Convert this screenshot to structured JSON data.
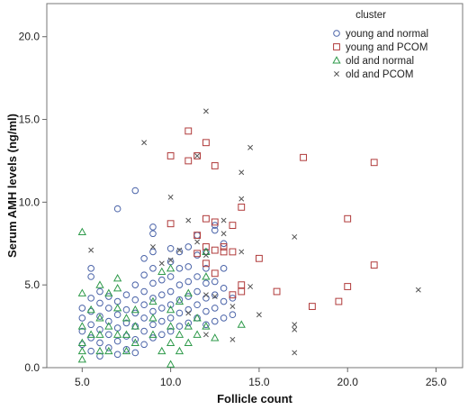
{
  "chart_data": {
    "type": "scatter",
    "xlabel": "Follicle count",
    "ylabel": "Serum AMH levels (ng/ml)",
    "xlim": [
      3.0,
      26.5
    ],
    "ylim": [
      0.0,
      22.0
    ],
    "x_ticks": [
      "5.0",
      "10.0",
      "15.0",
      "20.0",
      "25.0"
    ],
    "y_ticks": [
      "0.0",
      "5.0",
      "10.0",
      "15.0",
      "20.0"
    ],
    "grid": false,
    "legend": {
      "title": "cluster",
      "position": "top-right"
    },
    "series": [
      {
        "name": "young and normal",
        "marker": "circle",
        "color": "#4a63a8",
        "points": [
          [
            5,
            1.4
          ],
          [
            5,
            2.2
          ],
          [
            5,
            3.0
          ],
          [
            5,
            3.6
          ],
          [
            5.5,
            1.0
          ],
          [
            5.5,
            1.8
          ],
          [
            5.5,
            2.6
          ],
          [
            5.5,
            3.4
          ],
          [
            5.5,
            4.2
          ],
          [
            5.5,
            5.5
          ],
          [
            5.5,
            6.0
          ],
          [
            6,
            0.7
          ],
          [
            6,
            1.5
          ],
          [
            6,
            2.3
          ],
          [
            6,
            3.1
          ],
          [
            6,
            3.9
          ],
          [
            6,
            4.6
          ],
          [
            6.5,
            1.2
          ],
          [
            6.5,
            2.0
          ],
          [
            6.5,
            2.8
          ],
          [
            6.5,
            3.6
          ],
          [
            6.5,
            4.3
          ],
          [
            7,
            0.8
          ],
          [
            7,
            1.6
          ],
          [
            7,
            2.4
          ],
          [
            7,
            3.2
          ],
          [
            7,
            4.0
          ],
          [
            7,
            9.6
          ],
          [
            7.5,
            1.1
          ],
          [
            7.5,
            1.9
          ],
          [
            7.5,
            2.7
          ],
          [
            7.5,
            3.5
          ],
          [
            7.5,
            4.4
          ],
          [
            8,
            0.9
          ],
          [
            8,
            1.7
          ],
          [
            8,
            2.5
          ],
          [
            8,
            3.3
          ],
          [
            8,
            4.1
          ],
          [
            8,
            5.0
          ],
          [
            8,
            10.7
          ],
          [
            8.5,
            1.4
          ],
          [
            8.5,
            2.2
          ],
          [
            8.5,
            3.0
          ],
          [
            8.5,
            3.8
          ],
          [
            8.5,
            4.6
          ],
          [
            8.5,
            5.6
          ],
          [
            8.5,
            6.6
          ],
          [
            9,
            1.8
          ],
          [
            9,
            2.6
          ],
          [
            9,
            3.4
          ],
          [
            9,
            4.2
          ],
          [
            9,
            5.1
          ],
          [
            9,
            6.0
          ],
          [
            9,
            7.0
          ],
          [
            9,
            8.1
          ],
          [
            9,
            8.5
          ],
          [
            9.5,
            2.0
          ],
          [
            9.5,
            2.8
          ],
          [
            9.5,
            3.6
          ],
          [
            9.5,
            4.4
          ],
          [
            9.5,
            5.3
          ],
          [
            10,
            2.2
          ],
          [
            10,
            3.0
          ],
          [
            10,
            3.8
          ],
          [
            10,
            4.6
          ],
          [
            10,
            5.5
          ],
          [
            10,
            6.4
          ],
          [
            10,
            7.2
          ],
          [
            10.5,
            2.5
          ],
          [
            10.5,
            3.3
          ],
          [
            10.5,
            4.1
          ],
          [
            10.5,
            5.0
          ],
          [
            10.5,
            6.0
          ],
          [
            10.5,
            7.0
          ],
          [
            11,
            2.7
          ],
          [
            11,
            3.5
          ],
          [
            11,
            4.3
          ],
          [
            11,
            5.2
          ],
          [
            11,
            6.1
          ],
          [
            11,
            7.3
          ],
          [
            11.5,
            3.0
          ],
          [
            11.5,
            3.8
          ],
          [
            11.5,
            4.6
          ],
          [
            11.5,
            5.5
          ],
          [
            11.5,
            6.8
          ],
          [
            11.5,
            8.0
          ],
          [
            12,
            2.6
          ],
          [
            12,
            3.4
          ],
          [
            12,
            4.2
          ],
          [
            12,
            5.1
          ],
          [
            12,
            6.0
          ],
          [
            12,
            7.0
          ],
          [
            12.5,
            2.8
          ],
          [
            12.5,
            3.6
          ],
          [
            12.5,
            4.4
          ],
          [
            12.5,
            5.2
          ],
          [
            12.5,
            8.3
          ],
          [
            12.5,
            8.6
          ],
          [
            13,
            3.0
          ],
          [
            13,
            4.0
          ],
          [
            13,
            4.8
          ],
          [
            13,
            6.0
          ],
          [
            13,
            7.5
          ],
          [
            13.5,
            3.2
          ],
          [
            13.5,
            4.2
          ]
        ]
      },
      {
        "name": "young and PCOM",
        "marker": "square",
        "color": "#b03a3a",
        "points": [
          [
            10,
            12.8
          ],
          [
            10,
            8.7
          ],
          [
            11,
            14.3
          ],
          [
            11,
            12.5
          ],
          [
            11.5,
            12.8
          ],
          [
            11.5,
            8.0
          ],
          [
            11.5,
            6.9
          ],
          [
            12,
            13.6
          ],
          [
            12,
            9.0
          ],
          [
            12,
            7.3
          ],
          [
            12,
            6.3
          ],
          [
            12.5,
            12.2
          ],
          [
            12.5,
            8.8
          ],
          [
            12.5,
            7.1
          ],
          [
            12.5,
            5.7
          ],
          [
            13,
            7.0
          ],
          [
            13,
            7.3
          ],
          [
            13.5,
            8.6
          ],
          [
            13.5,
            7.0
          ],
          [
            13.5,
            4.4
          ],
          [
            14,
            5.0
          ],
          [
            14,
            9.7
          ],
          [
            14,
            4.6
          ],
          [
            15,
            6.6
          ],
          [
            16,
            4.6
          ],
          [
            17.5,
            12.7
          ],
          [
            18,
            3.7
          ],
          [
            19.5,
            4.0
          ],
          [
            20,
            4.9
          ],
          [
            20,
            9.0
          ],
          [
            21.5,
            12.4
          ],
          [
            21.5,
            6.2
          ]
        ]
      },
      {
        "name": "old and normal",
        "marker": "triangle",
        "color": "#2e9a4a",
        "points": [
          [
            5,
            8.2
          ],
          [
            5,
            4.5
          ],
          [
            5,
            1.5
          ],
          [
            5,
            1.0
          ],
          [
            5,
            0.5
          ],
          [
            5,
            2.5
          ],
          [
            5.5,
            3.5
          ],
          [
            5.5,
            2.0
          ],
          [
            6,
            3.0
          ],
          [
            6,
            2.0
          ],
          [
            6,
            1.0
          ],
          [
            6,
            5.0
          ],
          [
            6.5,
            2.5
          ],
          [
            6.5,
            1.0
          ],
          [
            6.5,
            4.5
          ],
          [
            7,
            5.4
          ],
          [
            7,
            4.8
          ],
          [
            7,
            2.0
          ],
          [
            7,
            3.6
          ],
          [
            7.5,
            2.0
          ],
          [
            7.5,
            1.0
          ],
          [
            7.5,
            3.0
          ],
          [
            8,
            1.5
          ],
          [
            8,
            2.5
          ],
          [
            8,
            3.5
          ],
          [
            9,
            2.0
          ],
          [
            9,
            3.0
          ],
          [
            9,
            4.0
          ],
          [
            9.5,
            1.0
          ],
          [
            9.5,
            5.8
          ],
          [
            10,
            0.2
          ],
          [
            10,
            1.5
          ],
          [
            10,
            2.5
          ],
          [
            10,
            3.5
          ],
          [
            10,
            6.0
          ],
          [
            10.5,
            1.0
          ],
          [
            10.5,
            2.0
          ],
          [
            10.5,
            4.0
          ],
          [
            11,
            1.5
          ],
          [
            11,
            2.5
          ],
          [
            11,
            4.5
          ],
          [
            11.5,
            2.0
          ],
          [
            11.5,
            3.0
          ],
          [
            12,
            2.5
          ],
          [
            12,
            5.5
          ],
          [
            12,
            7.0
          ],
          [
            12.5,
            1.8
          ],
          [
            14,
            2.6
          ]
        ]
      },
      {
        "name": "old and PCOM",
        "marker": "x",
        "color": "#555555",
        "points": [
          [
            5.5,
            7.1
          ],
          [
            8.5,
            13.6
          ],
          [
            9,
            7.3
          ],
          [
            9.5,
            6.3
          ],
          [
            10,
            10.3
          ],
          [
            10,
            6.5
          ],
          [
            10.5,
            7.1
          ],
          [
            11,
            8.9
          ],
          [
            11,
            3.3
          ],
          [
            11.5,
            7.6
          ],
          [
            11.5,
            12.8
          ],
          [
            12,
            15.5
          ],
          [
            12,
            6.8
          ],
          [
            12,
            4.4
          ],
          [
            12,
            2.0
          ],
          [
            12.5,
            4.3
          ],
          [
            13,
            8.9
          ],
          [
            13,
            8.1
          ],
          [
            13.5,
            1.7
          ],
          [
            13.5,
            3.7
          ],
          [
            14,
            10.2
          ],
          [
            14,
            11.8
          ],
          [
            14,
            7.0
          ],
          [
            14.5,
            13.3
          ],
          [
            14.5,
            4.9
          ],
          [
            15,
            3.2
          ],
          [
            17,
            7.9
          ],
          [
            17,
            2.6
          ],
          [
            17,
            2.3
          ],
          [
            17,
            0.9
          ],
          [
            24,
            4.7
          ]
        ]
      }
    ]
  }
}
